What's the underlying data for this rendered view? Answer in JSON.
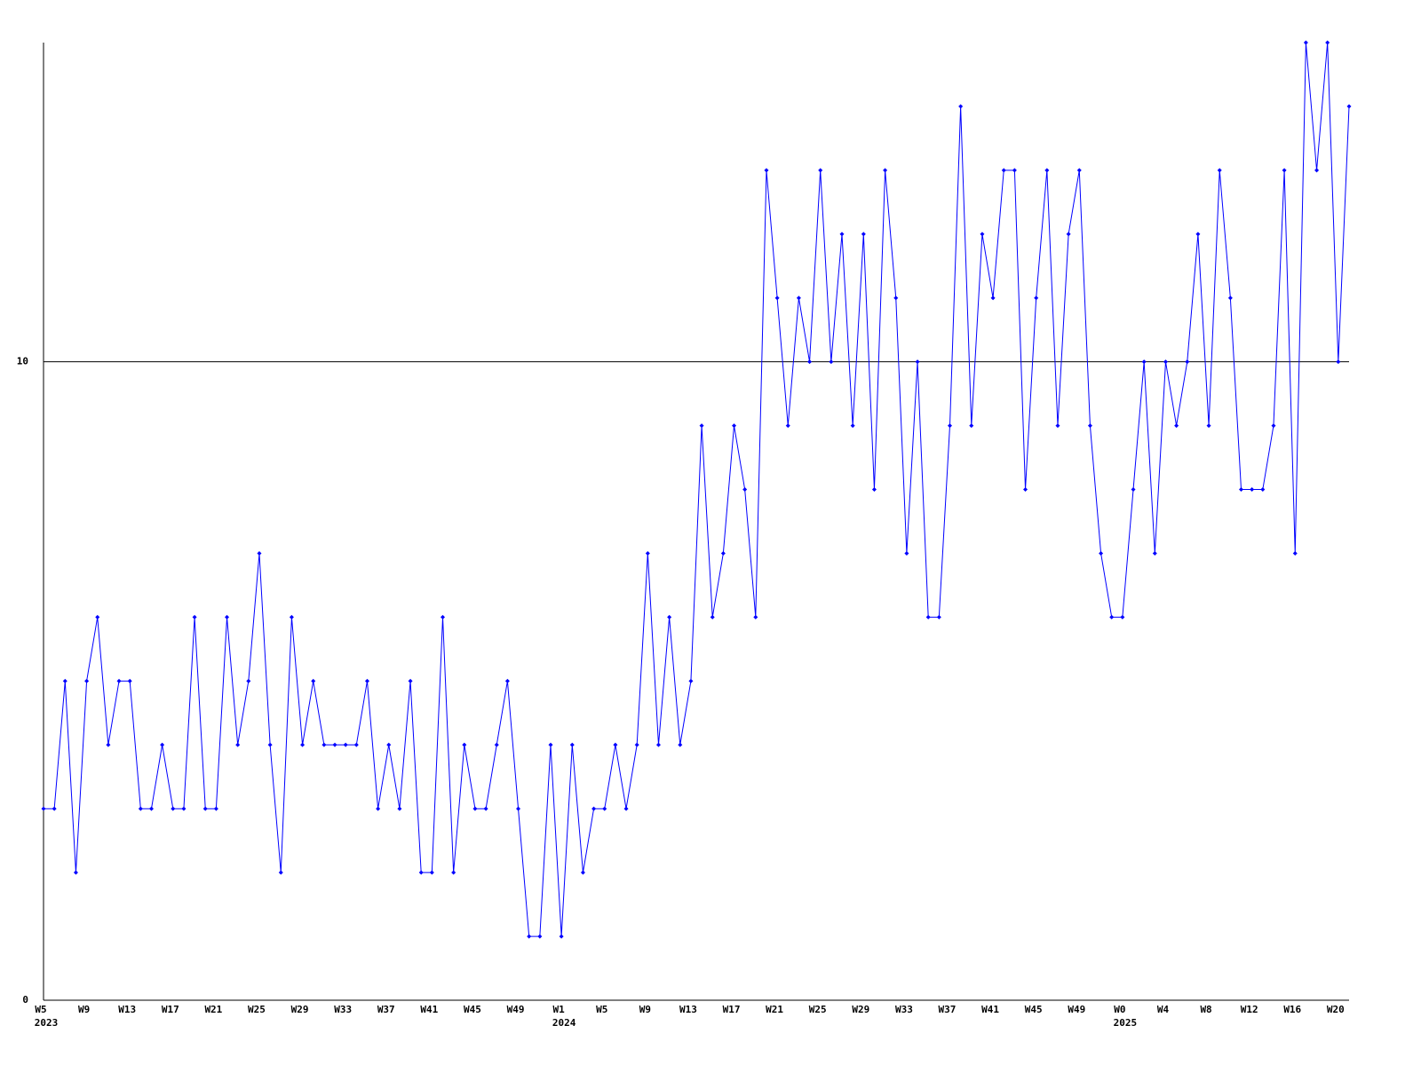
{
  "chart_data": {
    "type": "line",
    "categories": [
      "W5",
      null,
      null,
      null,
      "W9",
      null,
      null,
      null,
      "W13",
      null,
      null,
      null,
      "W17",
      null,
      null,
      null,
      "W21",
      null,
      null,
      null,
      "W25",
      null,
      null,
      null,
      "W29",
      null,
      null,
      null,
      "W33",
      null,
      null,
      null,
      "W37",
      null,
      null,
      null,
      "W41",
      null,
      null,
      null,
      "W45",
      null,
      null,
      null,
      "W49",
      null,
      null,
      null,
      "W1",
      null,
      null,
      null,
      "W5",
      null,
      null,
      null,
      "W9",
      null,
      null,
      null,
      "W13",
      null,
      null,
      null,
      "W17",
      null,
      null,
      null,
      "W21",
      null,
      null,
      null,
      "W25",
      null,
      null,
      null,
      "W29",
      null,
      null,
      null,
      "W33",
      null,
      null,
      null,
      "W37",
      null,
      null,
      null,
      "W41",
      null,
      null,
      null,
      "W45",
      null,
      null,
      null,
      "W49",
      null,
      null,
      null,
      "W0",
      null,
      null,
      null,
      "W4",
      null,
      null,
      null,
      "W8",
      null,
      null,
      null,
      "W12",
      null,
      null,
      null,
      "W16",
      null,
      null,
      null,
      "W20",
      null
    ],
    "years": [
      "2023",
      null,
      null,
      null,
      null,
      null,
      null,
      null,
      null,
      null,
      null,
      null,
      null,
      null,
      null,
      null,
      null,
      null,
      null,
      null,
      null,
      null,
      null,
      null,
      null,
      null,
      null,
      null,
      null,
      null,
      null,
      null,
      null,
      null,
      null,
      null,
      null,
      null,
      null,
      null,
      null,
      null,
      null,
      null,
      null,
      null,
      null,
      null,
      "2024",
      null,
      null,
      null,
      null,
      null,
      null,
      null,
      null,
      null,
      null,
      null,
      null,
      null,
      null,
      null,
      null,
      null,
      null,
      null,
      null,
      null,
      null,
      null,
      null,
      null,
      null,
      null,
      null,
      null,
      null,
      null,
      null,
      null,
      null,
      null,
      null,
      null,
      null,
      null,
      null,
      null,
      null,
      null,
      null,
      null,
      null,
      null,
      null,
      null,
      null,
      null,
      "2025",
      null,
      null,
      null,
      null,
      null,
      null,
      null,
      null,
      null,
      null,
      null,
      null,
      null,
      null,
      null,
      null,
      null,
      null,
      null,
      null,
      null
    ],
    "values": [
      3,
      3,
      5,
      2,
      5,
      6,
      4,
      5,
      5,
      3,
      3,
      4,
      3,
      3,
      6,
      3,
      3,
      6,
      4,
      5,
      7,
      4,
      2,
      6,
      4,
      5,
      4,
      4,
      4,
      4,
      5,
      3,
      4,
      3,
      5,
      2,
      2,
      6,
      2,
      4,
      3,
      3,
      4,
      5,
      3,
      1,
      1,
      4,
      1,
      4,
      2,
      3,
      3,
      4,
      3,
      4,
      7,
      4,
      6,
      4,
      5,
      9,
      6,
      7,
      9,
      8,
      6,
      13,
      11,
      9,
      11,
      10,
      13,
      10,
      12,
      9,
      12,
      8,
      13,
      11,
      7,
      10,
      6,
      6,
      9,
      14,
      9,
      12,
      11,
      13,
      13,
      8,
      11,
      13,
      9,
      12,
      13,
      9,
      7,
      6,
      6,
      8,
      10,
      7,
      10,
      9,
      10,
      12,
      9,
      13,
      11,
      8,
      8,
      8,
      9,
      13,
      7,
      15,
      13,
      15,
      10,
      14
    ],
    "color": "#0000ff",
    "ylim": [
      0,
      15
    ],
    "yticks": [
      0,
      10
    ],
    "grid": true
  }
}
